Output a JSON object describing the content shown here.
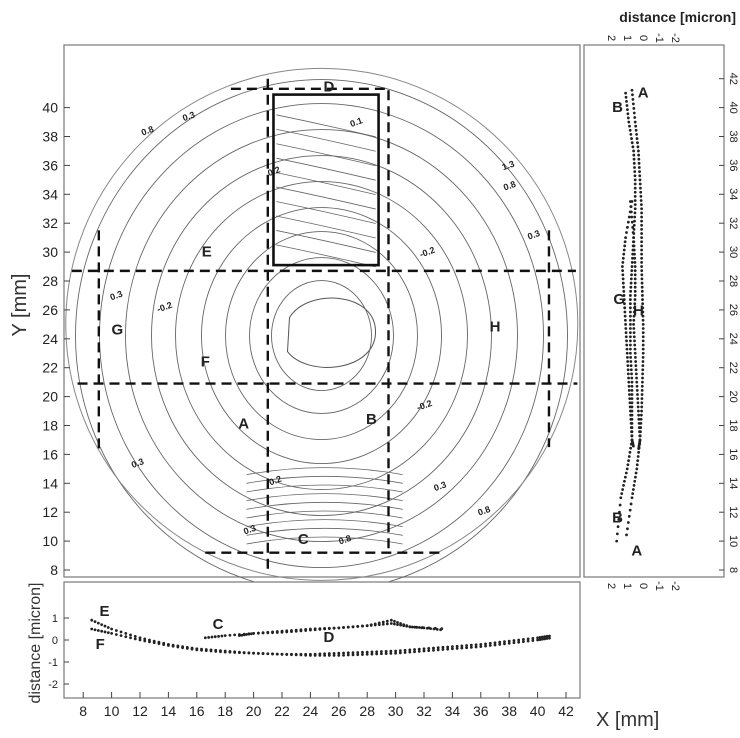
{
  "chart_data": [
    {
      "type": "contour",
      "title": "",
      "xlabel": "X [mm]",
      "ylabel": "Y  [mm]",
      "xlim": [
        7,
        43
      ],
      "ylim": [
        8,
        42
      ],
      "x_ticks": [
        "8",
        "10",
        "12",
        "14",
        "16",
        "18",
        "20",
        "22",
        "24",
        "26",
        "28",
        "30",
        "32",
        "34",
        "36",
        "38",
        "40",
        "42"
      ],
      "y_ticks": [
        "8",
        "10",
        "12",
        "14",
        "16",
        "18",
        "20",
        "22",
        "24",
        "26",
        "28",
        "30",
        "32",
        "34",
        "36",
        "38",
        "40"
      ],
      "contour_labels": [
        {
          "text": "0.8",
          "x": 12.6,
          "y": 38.2
        },
        {
          "text": "0.3",
          "x": 15.5,
          "y": 39.2
        },
        {
          "text": "0.1",
          "x": 27.3,
          "y": 38.8
        },
        {
          "text": "0.2",
          "x": 21.5,
          "y": 35.4
        },
        {
          "text": "1.3",
          "x": 38.0,
          "y": 35.8
        },
        {
          "text": "0.8",
          "x": 38.1,
          "y": 34.4
        },
        {
          "text": "-0.2",
          "x": 32.3,
          "y": 29.8
        },
        {
          "text": "0.3",
          "x": 39.8,
          "y": 31.0
        },
        {
          "text": "0.3",
          "x": 10.4,
          "y": 26.8
        },
        {
          "text": "-0.2",
          "x": 13.8,
          "y": 26.0
        },
        {
          "text": "-0.2",
          "x": 32.1,
          "y": 19.2
        },
        {
          "text": "0.3",
          "x": 11.9,
          "y": 15.2
        },
        {
          "text": "0.2",
          "x": 21.6,
          "y": 14.0
        },
        {
          "text": "0.3",
          "x": 33.2,
          "y": 13.6
        },
        {
          "text": "0.8",
          "x": 36.3,
          "y": 11.9
        },
        {
          "text": "0.3",
          "x": 19.8,
          "y": 10.6
        },
        {
          "text": "0.8",
          "x": 26.5,
          "y": 9.9
        }
      ],
      "region_labels": [
        {
          "text": "A",
          "x": 19.3,
          "y": 17.8
        },
        {
          "text": "B",
          "x": 28.3,
          "y": 18.1
        },
        {
          "text": "C",
          "x": 23.5,
          "y": 9.8
        },
        {
          "text": "D",
          "x": 25.3,
          "y": 41.1
        },
        {
          "text": "E",
          "x": 16.7,
          "y": 29.7
        },
        {
          "text": "F",
          "x": 16.6,
          "y": 22.1
        },
        {
          "text": "G",
          "x": 10.4,
          "y": 24.3
        },
        {
          "text": "H",
          "x": 37.0,
          "y": 24.5
        }
      ]
    },
    {
      "type": "scatter",
      "title": "",
      "xlabel": "X [mm]",
      "ylabel": "distance [micron]",
      "xlim": [
        7,
        43
      ],
      "ylim": [
        -3,
        2
      ],
      "y_ticks": [
        "1",
        "0",
        "-1",
        "-2"
      ],
      "series": [
        {
          "name": "E",
          "x": [
            8.6,
            10,
            12,
            14,
            16,
            18,
            20,
            22,
            24,
            26,
            28,
            30,
            32,
            34,
            36,
            38,
            40,
            41
          ],
          "values": [
            0.9,
            0.5,
            0.1,
            -0.2,
            -0.4,
            -0.5,
            -0.6,
            -0.65,
            -0.7,
            -0.7,
            -0.65,
            -0.6,
            -0.5,
            -0.4,
            -0.3,
            -0.15,
            0.0,
            0.1
          ]
        },
        {
          "name": "F",
          "x": [
            8.6,
            10,
            12,
            14,
            16,
            18,
            20,
            22,
            24,
            26,
            28,
            30,
            32,
            34,
            36,
            38,
            40,
            41
          ],
          "values": [
            0.5,
            0.3,
            0.0,
            -0.25,
            -0.45,
            -0.55,
            -0.6,
            -0.65,
            -0.65,
            -0.6,
            -0.55,
            -0.5,
            -0.4,
            -0.3,
            -0.2,
            -0.05,
            0.1,
            0.2
          ]
        },
        {
          "name": "C",
          "x": [
            16.6,
            18,
            20,
            22,
            24,
            26,
            28,
            29.7,
            31,
            33.7
          ],
          "values": [
            0.1,
            0.2,
            0.3,
            0.35,
            0.45,
            0.55,
            0.65,
            0.9,
            0.6,
            0.5
          ]
        },
        {
          "name": "D",
          "x": [
            19,
            20,
            22,
            24,
            26,
            28,
            29.7,
            31,
            32,
            33.4
          ],
          "values": [
            0.2,
            0.3,
            0.4,
            0.5,
            0.55,
            0.65,
            0.75,
            0.6,
            0.55,
            0.45
          ]
        }
      ],
      "labels": [
        {
          "text": "E",
          "x": 9.5,
          "y": 1.1
        },
        {
          "text": "F",
          "x": 9.2,
          "y": -0.4
        },
        {
          "text": "C",
          "x": 17.5,
          "y": 0.5
        },
        {
          "text": "D",
          "x": 25.3,
          "y": -0.1
        }
      ]
    },
    {
      "type": "scatter",
      "title": "",
      "xlabel": "distance [micron]",
      "ylabel": "Y [mm]",
      "xlim": [
        -2,
        2
      ],
      "ylim": [
        7,
        43
      ],
      "x_ticks": [
        "2",
        "1",
        "0",
        "-1",
        "-2"
      ],
      "y_ticks": [
        "8",
        "10",
        "12",
        "14",
        "16",
        "18",
        "20",
        "22",
        "24",
        "26",
        "28",
        "30",
        "32",
        "34",
        "36",
        "38",
        "40",
        "42"
      ],
      "series": [
        {
          "name": "A",
          "x": [
            0.5,
            0.3,
            0.1,
            0.0,
            -0.1,
            -0.1,
            -0.1,
            -0.15,
            -0.2,
            -0.2,
            -0.15,
            -0.1,
            0.0,
            0.2,
            0.5,
            0.9
          ],
          "y": [
            41.2,
            39,
            37,
            35,
            33,
            31,
            29,
            27,
            25,
            23,
            21,
            19,
            17,
            15,
            13,
            10
          ]
        },
        {
          "name": "B",
          "x": [
            0.9,
            0.7,
            0.4,
            0.3,
            0.3,
            0.4,
            0.5,
            0.6,
            0.6,
            0.6,
            0.5,
            0.5,
            0.5,
            0.8,
            1.2,
            1.5
          ],
          "y": [
            41,
            39,
            37,
            35,
            33,
            31,
            29,
            27,
            25,
            23,
            21,
            19,
            17,
            15,
            13,
            9.5
          ]
        },
        {
          "name": "G",
          "x": [
            0.5,
            0.9,
            1.1,
            1.0,
            0.9,
            0.8,
            0.7,
            0.6,
            0.5,
            0.4
          ],
          "y": [
            33.5,
            31,
            29,
            27,
            25,
            23,
            21,
            19,
            17,
            16.5
          ]
        },
        {
          "name": "H",
          "x": [
            0.6,
            0.4,
            0.3,
            0.3,
            0.4,
            0.3,
            0.2,
            0.1,
            0.0,
            0.1
          ],
          "y": [
            33.5,
            31,
            29,
            27,
            25,
            23,
            21,
            19,
            17,
            16.3
          ]
        }
      ],
      "labels": [
        {
          "text": "A",
          "x": -0.2,
          "y": 40.7
        },
        {
          "text": "B",
          "x": 1.4,
          "y": 39.7
        },
        {
          "text": "G",
          "x": 1.3,
          "y": 26.4
        },
        {
          "text": "H",
          "x": 0.1,
          "y": 25.6
        },
        {
          "text": "B",
          "x": 1.4,
          "y": 11.3
        },
        {
          "text": "A",
          "x": 0.2,
          "y": 9.0
        }
      ]
    }
  ]
}
